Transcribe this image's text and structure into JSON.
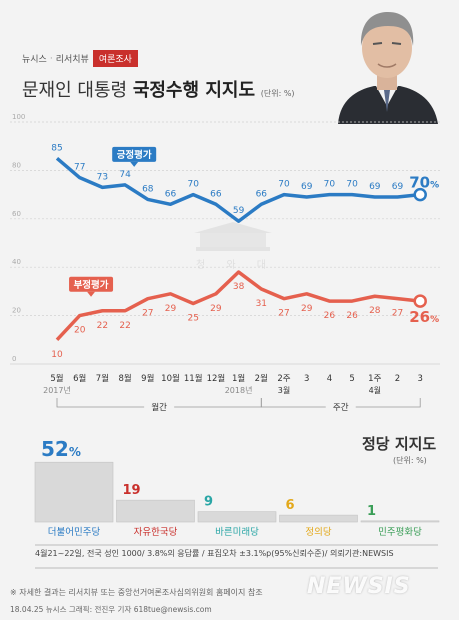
{
  "header": {
    "tags": [
      "뉴시스",
      "리서치뷰"
    ],
    "badge": "여론조사",
    "title_normal": "문재인 대통령 ",
    "title_bold": "국정수행 지지도",
    "title_unit": "(단위: %)"
  },
  "chart_data": [
    {
      "type": "line",
      "x": [
        "5월",
        "6월",
        "7월",
        "8월",
        "9월",
        "10월",
        "11월",
        "12월",
        "1월",
        "2월",
        "2주",
        "3",
        "4",
        "5",
        "1주",
        "2",
        "3"
      ],
      "x_sublabels": [
        "2017년",
        "",
        "",
        "",
        "",
        "",
        "",
        "",
        "2018년",
        "",
        "3월",
        "",
        "",
        "",
        "4월",
        "",
        ""
      ],
      "x_groups": [
        {
          "label": "월간",
          "from": "5월",
          "to": "2월"
        },
        {
          "label": "주간",
          "from": "2월",
          "to": "3"
        }
      ],
      "yticks": [
        0,
        20,
        40,
        60,
        80,
        100
      ],
      "ylim": [
        0,
        100
      ],
      "grid": true,
      "series": [
        {
          "name": "긍정평가",
          "color": "#2b7bc4",
          "values": [
            85,
            77,
            73,
            74,
            68,
            66,
            70,
            66,
            59,
            66,
            70,
            69,
            70,
            70,
            69,
            69,
            70
          ],
          "last_label": "70"
        },
        {
          "name": "부정평가",
          "color": "#e5604e",
          "values": [
            10,
            20,
            22,
            22,
            27,
            29,
            25,
            29,
            38,
            31,
            27,
            29,
            26,
            26,
            28,
            27,
            26
          ],
          "last_label": "26"
        }
      ]
    },
    {
      "type": "bar",
      "title": "정당 지지도",
      "unit": "(단위: %)",
      "categories": [
        "더불어민주당",
        "자유한국당",
        "바른미래당",
        "정의당",
        "민주평화당"
      ],
      "values": [
        52,
        19,
        9,
        6,
        1
      ],
      "value_colors": [
        "#2b7bc4",
        "#c9302c",
        "#2aa6a6",
        "#e3a81a",
        "#3a9e57"
      ],
      "first_suffix": "%"
    }
  ],
  "footer": {
    "note": "4월21~22일, 전국 성인 1000/ 3.8%의 응답률 / 표집오차 ±3.1%p(95%신뢰수준)/ 의뢰기관:NEWSIS",
    "ref": "※ 자세한 결과는 리서치뷰 또는 중앙선거여론조사심의위원회 홈페이지 참조",
    "credit": "18.04.25 뉴시스 그래픽: 전진우 기자 618tue@newsis.com",
    "watermark": "NEWSIS"
  }
}
